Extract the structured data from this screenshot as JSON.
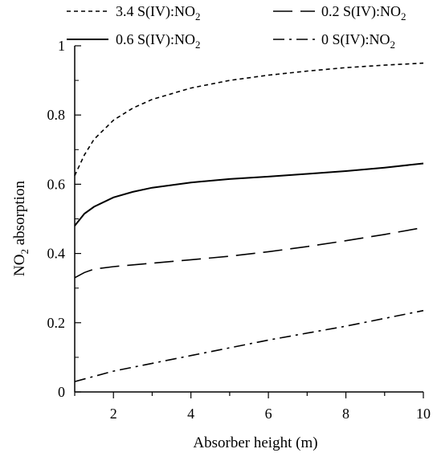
{
  "chart_data": {
    "type": "line",
    "xlabel": "Absorber height (m)",
    "ylabel": {
      "main": "NO",
      "sub": "2",
      "rest": " absorption"
    },
    "xlim": [
      1,
      10
    ],
    "ylim": [
      0,
      1
    ],
    "x_ticks": [
      2,
      4,
      6,
      8,
      10
    ],
    "y_ticks": [
      0,
      0.2,
      0.4,
      0.6,
      0.8,
      1
    ],
    "y_tick_labels": [
      "0",
      "0.2",
      "0.4",
      "0.6",
      "0.8",
      "1"
    ],
    "x_tick_labels": [
      "2",
      "4",
      "6",
      "8",
      "10"
    ],
    "grid": false,
    "legend_position": "top",
    "series": [
      {
        "name": "3.4 S(IV):NO",
        "name_sub": "2",
        "dash": "dotted",
        "x": [
          1.0,
          1.25,
          1.5,
          2.0,
          2.5,
          3.0,
          4.0,
          5.0,
          6.0,
          7.0,
          8.0,
          9.0,
          10.0
        ],
        "y": [
          0.625,
          0.685,
          0.73,
          0.785,
          0.82,
          0.845,
          0.878,
          0.9,
          0.915,
          0.927,
          0.937,
          0.944,
          0.95
        ]
      },
      {
        "name": "0.2 S(IV):NO",
        "name_sub": "2",
        "dash": "long-dash",
        "x": [
          1.0,
          1.25,
          1.5,
          2.0,
          3.0,
          4.0,
          5.0,
          6.0,
          7.0,
          8.0,
          9.0,
          10.0
        ],
        "y": [
          0.33,
          0.345,
          0.355,
          0.362,
          0.372,
          0.382,
          0.392,
          0.405,
          0.42,
          0.437,
          0.455,
          0.475
        ]
      },
      {
        "name": "0.6 S(IV):NO",
        "name_sub": "2",
        "dash": "solid",
        "x": [
          1.0,
          1.25,
          1.5,
          2.0,
          2.5,
          3.0,
          4.0,
          5.0,
          6.0,
          7.0,
          8.0,
          9.0,
          10.0
        ],
        "y": [
          0.48,
          0.515,
          0.535,
          0.562,
          0.578,
          0.59,
          0.605,
          0.615,
          0.622,
          0.63,
          0.638,
          0.648,
          0.66
        ]
      },
      {
        "name": "0 S(IV):NO",
        "name_sub": "2",
        "dash": "dash-dot",
        "x": [
          1.0,
          2.0,
          4.0,
          6.0,
          8.0,
          10.0
        ],
        "y": [
          0.03,
          0.06,
          0.105,
          0.15,
          0.19,
          0.235
        ]
      }
    ]
  }
}
